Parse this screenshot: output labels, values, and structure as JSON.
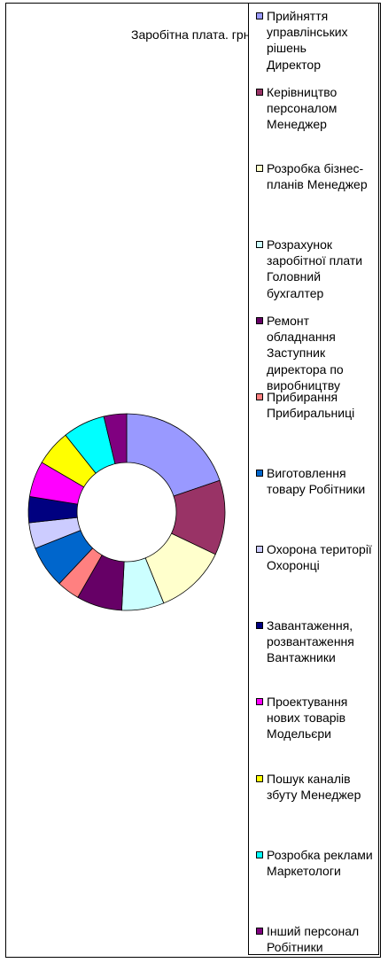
{
  "chart_data": {
    "type": "pie",
    "subtype": "doughnut",
    "title": "Заробітна плата. грн",
    "categories": [
      "Прийняття управлінських рішень Директор",
      "Керівництво персоналом Менеджер",
      "Розробка бізнес-планів Менеджер",
      "Розрахунок заробітної плати Головний бухгалтер",
      "Ремонт обладнання Заступник директора по виробництву",
      "Прибирання Прибиральниці",
      "Виготовлення товару Робітники",
      "Охорона території Охоронці",
      "Завантаження, розвантаження Вантажники",
      "Проектування нових товарів Модельєри",
      "Пошук каналів збуту Менеджер",
      "Розробка реклами Маркетологи",
      "Інший персонал Робітники"
    ],
    "values": [
      18.5,
      11.5,
      11.0,
      6.5,
      7.0,
      3.5,
      6.5,
      4.0,
      4.0,
      5.5,
      5.5,
      6.5,
      3.5
    ],
    "colors": [
      "#9999FF",
      "#993366",
      "#FFFFCC",
      "#CCFFFF",
      "#660066",
      "#FF8080",
      "#0066CC",
      "#CCCCFF",
      "#000080",
      "#FF00FF",
      "#FFFF00",
      "#00FFFF",
      "#800080"
    ],
    "legend_position": "right",
    "start_angle_deg": 0,
    "direction": "clockwise"
  }
}
